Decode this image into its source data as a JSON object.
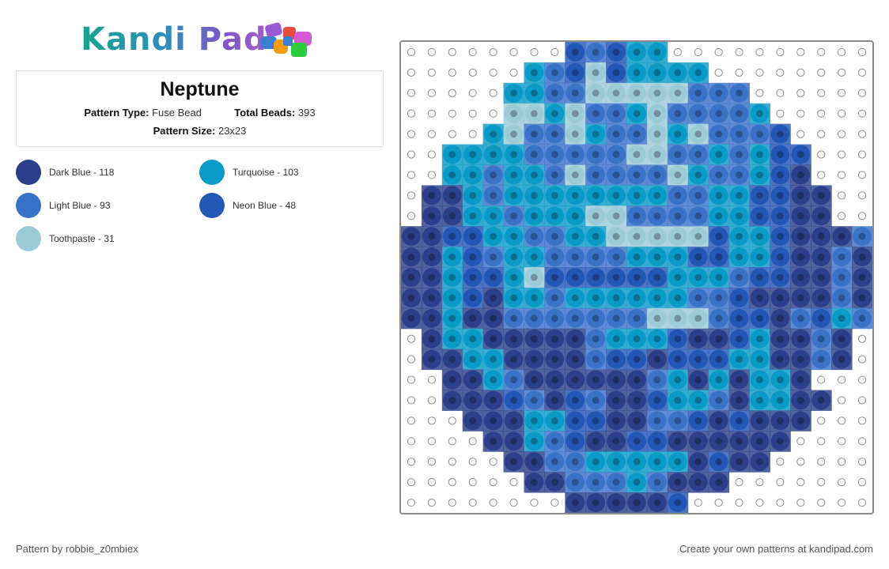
{
  "header": {
    "logo_text": "Kandi Pad",
    "logo_bead_colors": [
      "#9b59d6",
      "#3a7fd4",
      "#e84c3d",
      "#f39c12",
      "#2ecc40",
      "#d65cd6"
    ]
  },
  "pattern": {
    "title": "Neptune",
    "type_label": "Pattern Type:",
    "type_value": "Fuse Bead",
    "beads_label": "Total Beads:",
    "beads_value": "393",
    "size_label": "Pattern Size:",
    "size_value": "23x23"
  },
  "legend": [
    {
      "name": "Dark Blue - 118",
      "color": "#2b3f8a"
    },
    {
      "name": "Turquoise - 103",
      "color": "#0a9ac7"
    },
    {
      "name": "Light Blue - 93",
      "color": "#3a72c8"
    },
    {
      "name": "Neon Blue - 48",
      "color": "#2357b6"
    },
    {
      "name": "Toothpaste - 31",
      "color": "#9ccbd8"
    }
  ],
  "grid": {
    "palette": {
      "D": "#2b3f8a",
      "T": "#0a9ac7",
      "L": "#3a72c8",
      "N": "#2357b6",
      "P": "#9ccbd8"
    },
    "rows": [
      "........NLNTT..........",
      "......TLNPNTTTT........",
      ".....TTLLPPPPPLLL......",
      ".....PPTPLLTPLLLLT.....",
      "....TPLLPTLLPTPLLLN....",
      "..TTTTLLLLLPPLLTLTNN...",
      "..TTLTTLPLLLLPTLLTND...",
      ".DDTLTTTTTTTTLLTTNNDD..",
      ".DDTTLTTTPPLLLLTTNNDD..",
      "DDNNTTLLTTPPPPPNTTNDDDL",
      "DDTNLTTLLLLTTTNNTTNDDLD",
      "DDTNNTPNNNNNNTTTLNNDDLD",
      "DDTNDTTLTTTTTTLLNDDDDLD",
      "DDTDDLLLLLLLPPPLNNDLNTL",
      ".DTTDDDDDLTTTNDDNTDDLD.",
      ".DDTTDDDDLNNDNNNTTDDLD.",
      "..DDTLDDDDDDLTDTDTTD...",
      "..DDDNLDNLDDNTTLDTTDD..",
      "...DDDTTNNDDLLNDNDDD...",
      "....DDTLNDDNNDDDDDD....",
      ".....DDLLTTTTTDNDD.....",
      "......DDLLLTLDDD.......",
      "........DDDDDN........."
    ]
  },
  "footer": {
    "credit": "Pattern by robbie_z0mbiex",
    "promo": "Create your own patterns at kandipad.com"
  }
}
